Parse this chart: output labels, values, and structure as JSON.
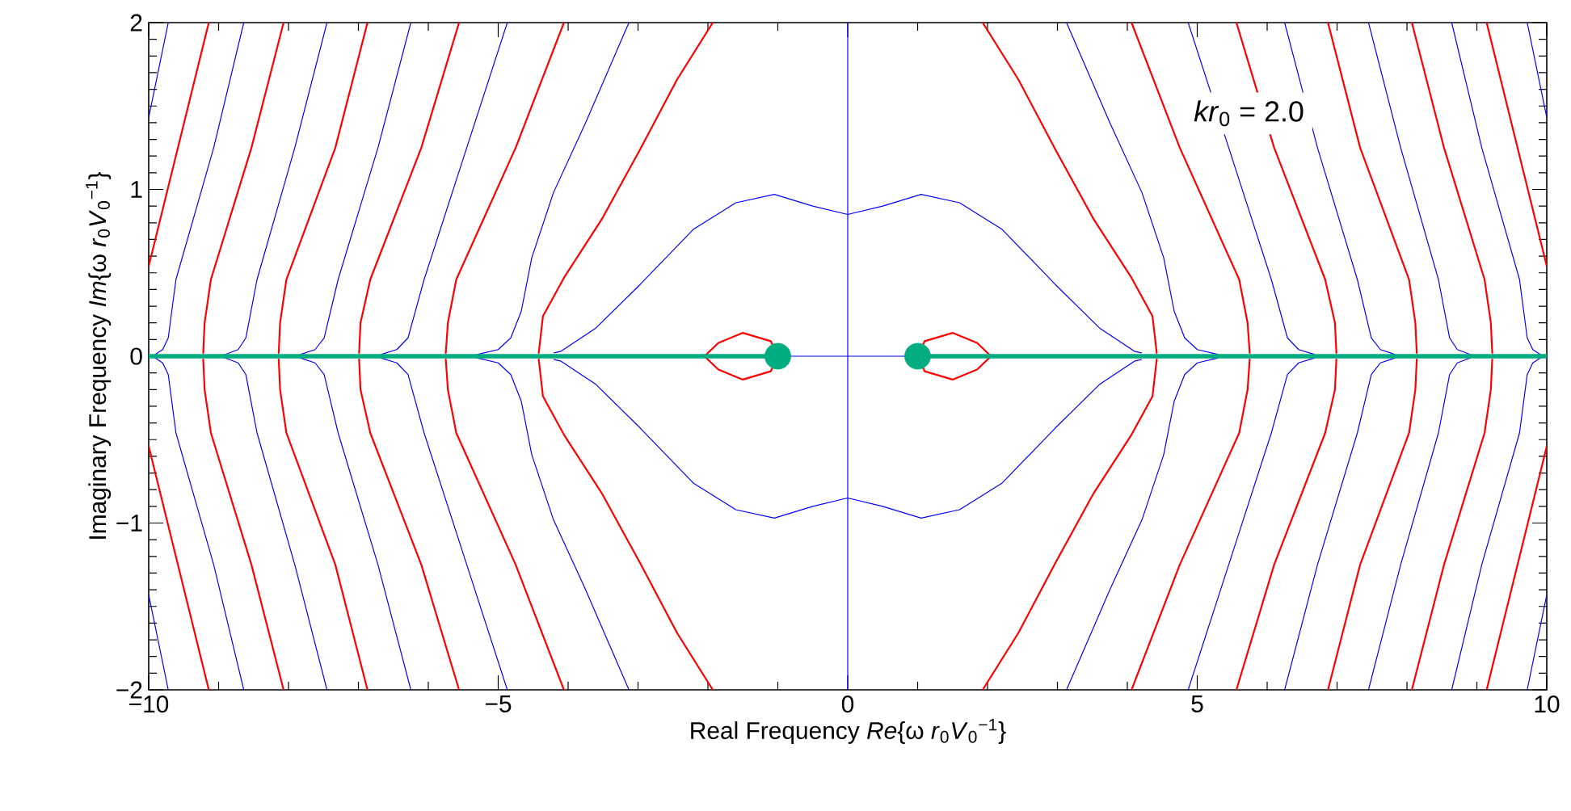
{
  "chart_data": {
    "type": "line",
    "xlabel": "Real Frequency  *Re*{ω *r*$_{0}$*V*$_{0}$$^{−1}$}",
    "ylabel": "Imaginary Frequency  *Im*{ω *r*$_{0}$*V*$_{0}$$^{−1}$}",
    "annotations": [
      "*kr*$_{0}$ = 2.0"
    ],
    "xlim": [
      -10,
      10
    ],
    "ylim": [
      -2,
      2
    ],
    "xticks": [
      {
        "value": -10,
        "label": "−10"
      },
      {
        "value": -5,
        "label": "−5"
      },
      0,
      5,
      10
    ],
    "yticks": [
      {
        "value": -2,
        "label": "−2"
      },
      {
        "value": -1,
        "label": "−1"
      },
      0,
      1,
      2
    ],
    "grid": false,
    "series": [
      {
        "color": "#0000ff",
        "x": [
          0,
          0
        ],
        "values": [
          -2,
          2
        ]
      },
      {
        "color": "#0000ff",
        "x": [
          -1,
          1
        ],
        "values": [
          0,
          0
        ]
      },
      {
        "color": "#0000ff",
        "x": [
          -4.2,
          -4.1,
          -3.6,
          -2.97,
          -2.21,
          -1.6,
          -1.05,
          -0.5,
          0,
          0.5,
          1.05,
          1.6,
          2.21,
          2.97,
          3.6,
          4.1,
          4.2
        ],
        "values": [
          0.02,
          0.03,
          0.17,
          0.43,
          0.76,
          0.92,
          0.97,
          0.9,
          0.85,
          0.9,
          0.97,
          0.92,
          0.76,
          0.43,
          0.17,
          0.03,
          0.02
        ]
      },
      {
        "color": "#0000ff",
        "x": [
          -4.2,
          -4.1,
          -3.6,
          -2.97,
          -2.21,
          -1.6,
          -1.05,
          -0.5,
          0,
          0.5,
          1.05,
          1.6,
          2.21,
          2.97,
          3.6,
          4.1,
          4.2
        ],
        "values": [
          -0.02,
          -0.03,
          -0.17,
          -0.43,
          -0.76,
          -0.92,
          -0.97,
          -0.9,
          -0.85,
          -0.9,
          -0.97,
          -0.92,
          -0.76,
          -0.43,
          -0.17,
          -0.03,
          -0.02
        ]
      },
      {
        "color": "#ff0000",
        "x": [
          1,
          1.1,
          1.5,
          1.85,
          2.05
        ],
        "values": [
          0,
          0.09,
          0.14,
          0.08,
          0
        ]
      },
      {
        "color": "#ff0000",
        "x": [
          1,
          1.1,
          1.5,
          1.85,
          2.05
        ],
        "values": [
          0,
          -0.09,
          -0.14,
          -0.08,
          0
        ]
      },
      {
        "color": "#ff0000",
        "x": [
          -2.05,
          -1.85,
          -1.5,
          -1.1,
          -1
        ],
        "values": [
          0,
          0.08,
          0.14,
          0.09,
          0
        ]
      },
      {
        "color": "#ff0000",
        "x": [
          -2.05,
          -1.85,
          -1.5,
          -1.1,
          -1
        ],
        "values": [
          0,
          -0.08,
          -0.14,
          -0.09,
          0
        ]
      },
      {
        "color": "#ff0000",
        "x": [
          1.93,
          2.44,
          2.97,
          3.52,
          4.06,
          4.36,
          4.42
        ],
        "values": [
          2,
          1.66,
          1.24,
          0.82,
          0.47,
          0.24,
          0.02
        ]
      },
      {
        "color": "#ff0000",
        "x": [
          1.93,
          2.44,
          2.97,
          3.52,
          4.06,
          4.36,
          4.42
        ],
        "values": [
          -2,
          -1.66,
          -1.24,
          -0.82,
          -0.47,
          -0.24,
          -0.02
        ]
      },
      {
        "color": "#ff0000",
        "x": [
          -4.42,
          -4.36,
          -4.06,
          -3.52,
          -2.97,
          -2.44,
          -1.93
        ],
        "values": [
          0.02,
          0.24,
          0.47,
          0.82,
          1.24,
          1.66,
          2
        ]
      },
      {
        "color": "#ff0000",
        "x": [
          -4.42,
          -4.36,
          -4.06,
          -3.52,
          -2.97,
          -2.44,
          -1.93
        ],
        "values": [
          -0.02,
          -0.24,
          -0.47,
          -0.82,
          -1.24,
          -1.66,
          -2
        ]
      },
      {
        "color": "#ff0000",
        "x": [
          4.06,
          4.75,
          5.6,
          5.72,
          5.75
        ],
        "values": [
          2,
          1.25,
          0.46,
          0.2,
          0.02
        ]
      },
      {
        "color": "#ff0000",
        "x": [
          4.06,
          4.75,
          5.6,
          5.72,
          5.75
        ],
        "values": [
          -2,
          -1.25,
          -0.46,
          -0.2,
          -0.02
        ]
      },
      {
        "color": "#ff0000",
        "x": [
          -5.75,
          -5.72,
          -5.6,
          -4.75,
          -4.06
        ],
        "values": [
          0.02,
          0.2,
          0.46,
          1.25,
          2
        ]
      },
      {
        "color": "#ff0000",
        "x": [
          -5.75,
          -5.72,
          -5.6,
          -4.75,
          -4.06
        ],
        "values": [
          -0.02,
          -0.2,
          -0.46,
          -1.25,
          -2
        ]
      },
      {
        "color": "#ff0000",
        "x": [
          5.56,
          6.1,
          6.83,
          6.97,
          6.99
        ],
        "values": [
          2,
          1.25,
          0.46,
          0.2,
          0.02
        ]
      },
      {
        "color": "#ff0000",
        "x": [
          5.56,
          6.1,
          6.83,
          6.97,
          6.99
        ],
        "values": [
          -2,
          -1.25,
          -0.46,
          -0.2,
          -0.02
        ]
      },
      {
        "color": "#ff0000",
        "x": [
          -6.99,
          -6.97,
          -6.83,
          -6.1,
          -5.56
        ],
        "values": [
          0.02,
          0.2,
          0.46,
          1.25,
          2
        ]
      },
      {
        "color": "#ff0000",
        "x": [
          -6.99,
          -6.97,
          -6.83,
          -6.1,
          -5.56
        ],
        "values": [
          -0.02,
          -0.2,
          -0.46,
          -1.25,
          -2
        ]
      },
      {
        "color": "#ff0000",
        "x": [
          6.87,
          7.33,
          8.03,
          8.12,
          8.14
        ],
        "values": [
          2,
          1.25,
          0.46,
          0.2,
          0.02
        ]
      },
      {
        "color": "#ff0000",
        "x": [
          6.87,
          7.33,
          8.03,
          8.12,
          8.14
        ],
        "values": [
          -2,
          -1.25,
          -0.46,
          -0.2,
          -0.02
        ]
      },
      {
        "color": "#ff0000",
        "x": [
          -8.14,
          -8.12,
          -8.03,
          -7.33,
          -6.87
        ],
        "values": [
          0.02,
          0.2,
          0.46,
          1.25,
          2
        ]
      },
      {
        "color": "#ff0000",
        "x": [
          -8.14,
          -8.12,
          -8.03,
          -7.33,
          -6.87
        ],
        "values": [
          -0.02,
          -0.2,
          -0.46,
          -1.25,
          -2
        ]
      },
      {
        "color": "#ff0000",
        "x": [
          8.07,
          8.53,
          9.11,
          9.2,
          9.22
        ],
        "values": [
          2,
          1.25,
          0.46,
          0.2,
          0.02
        ]
      },
      {
        "color": "#ff0000",
        "x": [
          8.07,
          8.53,
          9.11,
          9.2,
          9.22
        ],
        "values": [
          -2,
          -1.25,
          -0.46,
          -0.2,
          -0.02
        ]
      },
      {
        "color": "#ff0000",
        "x": [
          -9.22,
          -9.2,
          -9.11,
          -8.53,
          -8.07
        ],
        "values": [
          0.02,
          0.2,
          0.46,
          1.25,
          2
        ]
      },
      {
        "color": "#ff0000",
        "x": [
          -9.22,
          -9.2,
          -9.11,
          -8.53,
          -8.07
        ],
        "values": [
          -0.02,
          -0.2,
          -0.46,
          -1.25,
          -2
        ]
      },
      {
        "color": "#ff0000",
        "x": [
          9.14,
          10
        ],
        "values": [
          2,
          0.54
        ]
      },
      {
        "color": "#ff0000",
        "x": [
          9.14,
          10
        ],
        "values": [
          -2,
          -0.54
        ]
      },
      {
        "color": "#ff0000",
        "x": [
          -10,
          -9.14
        ],
        "values": [
          0.54,
          2
        ]
      },
      {
        "color": "#ff0000",
        "x": [
          -10,
          -9.14
        ],
        "values": [
          -0.54,
          -2
        ]
      },
      {
        "color": "#0000ff",
        "x": [
          3.13,
          3.75,
          4.21,
          4.52,
          4.67,
          4.82,
          5.0,
          5.3
        ],
        "values": [
          2,
          1.4,
          0.98,
          0.59,
          0.27,
          0.11,
          0.04,
          0.01
        ]
      },
      {
        "color": "#0000ff",
        "x": [
          3.13,
          3.75,
          4.21,
          4.52,
          4.67,
          4.82,
          5.0,
          5.3
        ],
        "values": [
          -2,
          -1.4,
          -0.98,
          -0.59,
          -0.27,
          -0.11,
          -0.04,
          -0.01
        ]
      },
      {
        "color": "#0000ff",
        "x": [
          -5.3,
          -5.0,
          -4.82,
          -4.67,
          -4.52,
          -4.21,
          -3.75,
          -3.13
        ],
        "values": [
          0.01,
          0.04,
          0.11,
          0.27,
          0.59,
          0.98,
          1.4,
          2
        ]
      },
      {
        "color": "#0000ff",
        "x": [
          -5.3,
          -5.0,
          -4.82,
          -4.67,
          -4.52,
          -4.21,
          -3.75,
          -3.13
        ],
        "values": [
          -0.01,
          -0.04,
          -0.11,
          -0.27,
          -0.59,
          -0.98,
          -1.4,
          -2
        ]
      },
      {
        "color": "#0000ff",
        "x": [
          4.87,
          5.45,
          6.06,
          6.29,
          6.45,
          6.68
        ],
        "values": [
          2,
          1.25,
          0.46,
          0.11,
          0.04,
          0.01
        ]
      },
      {
        "color": "#0000ff",
        "x": [
          4.87,
          5.45,
          6.06,
          6.29,
          6.45,
          6.68
        ],
        "values": [
          -2,
          -1.25,
          -0.46,
          -0.11,
          -0.04,
          -0.01
        ]
      },
      {
        "color": "#0000ff",
        "x": [
          -6.68,
          -6.45,
          -6.29,
          -6.06,
          -5.45,
          -4.87
        ],
        "values": [
          0.01,
          0.04,
          0.11,
          0.46,
          1.25,
          2
        ]
      },
      {
        "color": "#0000ff",
        "x": [
          -6.68,
          -6.45,
          -6.29,
          -6.06,
          -5.45,
          -4.87
        ],
        "values": [
          -0.01,
          -0.04,
          -0.11,
          -0.46,
          -1.25,
          -2
        ]
      },
      {
        "color": "#0000ff",
        "x": [
          6.25,
          6.72,
          7.29,
          7.49,
          7.62,
          7.83
        ],
        "values": [
          2,
          1.25,
          0.46,
          0.11,
          0.04,
          0.01
        ]
      },
      {
        "color": "#0000ff",
        "x": [
          6.25,
          6.72,
          7.29,
          7.49,
          7.62,
          7.83
        ],
        "values": [
          -2,
          -1.25,
          -0.46,
          -0.11,
          -0.04,
          -0.01
        ]
      },
      {
        "color": "#0000ff",
        "x": [
          -7.83,
          -7.62,
          -7.49,
          -7.29,
          -6.72,
          -6.25
        ],
        "values": [
          0.01,
          0.04,
          0.11,
          0.46,
          1.25,
          2
        ]
      },
      {
        "color": "#0000ff",
        "x": [
          -7.83,
          -7.62,
          -7.49,
          -7.29,
          -6.72,
          -6.25
        ],
        "values": [
          -0.01,
          -0.04,
          -0.11,
          -0.46,
          -1.25,
          -2
        ]
      },
      {
        "color": "#0000ff",
        "x": [
          7.45,
          7.91,
          8.45,
          8.61,
          8.72,
          8.91
        ],
        "values": [
          2,
          1.25,
          0.46,
          0.11,
          0.04,
          0.01
        ]
      },
      {
        "color": "#0000ff",
        "x": [
          7.45,
          7.91,
          8.45,
          8.61,
          8.72,
          8.91
        ],
        "values": [
          -2,
          -1.25,
          -0.46,
          -0.11,
          -0.04,
          -0.01
        ]
      },
      {
        "color": "#0000ff",
        "x": [
          -8.91,
          -8.72,
          -8.61,
          -8.45,
          -7.91,
          -7.45
        ],
        "values": [
          0.01,
          0.04,
          0.11,
          0.46,
          1.25,
          2
        ]
      },
      {
        "color": "#0000ff",
        "x": [
          -8.91,
          -8.72,
          -8.61,
          -8.45,
          -7.91,
          -7.45
        ],
        "values": [
          -0.01,
          -0.04,
          -0.11,
          -0.46,
          -1.25,
          -2
        ]
      },
      {
        "color": "#0000ff",
        "x": [
          8.64,
          9.07,
          9.61,
          9.72,
          9.8,
          9.91
        ],
        "values": [
          2,
          1.25,
          0.46,
          0.11,
          0.04,
          0.01
        ]
      },
      {
        "color": "#0000ff",
        "x": [
          8.64,
          9.07,
          9.61,
          9.72,
          9.8,
          9.91
        ],
        "values": [
          -2,
          -1.25,
          -0.46,
          -0.11,
          -0.04,
          -0.01
        ]
      },
      {
        "color": "#0000ff",
        "x": [
          -9.91,
          -9.8,
          -9.72,
          -9.61,
          -9.07,
          -8.64
        ],
        "values": [
          0.01,
          0.04,
          0.11,
          0.46,
          1.25,
          2
        ]
      },
      {
        "color": "#0000ff",
        "x": [
          -9.91,
          -9.8,
          -9.72,
          -9.61,
          -9.07,
          -8.64
        ],
        "values": [
          -0.01,
          -0.04,
          -0.11,
          -0.46,
          -1.25,
          -2
        ]
      },
      {
        "color": "#0000ff",
        "x": [
          9.72,
          10
        ],
        "values": [
          2,
          1.43
        ]
      },
      {
        "color": "#0000ff",
        "x": [
          9.72,
          10
        ],
        "values": [
          -2,
          -1.43
        ]
      },
      {
        "color": "#0000ff",
        "x": [
          -10,
          -9.72
        ],
        "values": [
          1.43,
          2
        ]
      },
      {
        "color": "#0000ff",
        "x": [
          -10,
          -9.72
        ],
        "values": [
          -1.43,
          -2
        ]
      },
      {
        "color": "#00ad80",
        "x": [
          -10,
          -1
        ],
        "values": [
          0,
          0
        ]
      },
      {
        "color": "#00ad80",
        "x": [
          1,
          10
        ],
        "values": [
          0,
          0
        ]
      },
      {
        "type": "scatter",
        "color": "#00ad80",
        "x": [
          -1,
          1
        ],
        "values": [
          0,
          0
        ]
      }
    ]
  }
}
